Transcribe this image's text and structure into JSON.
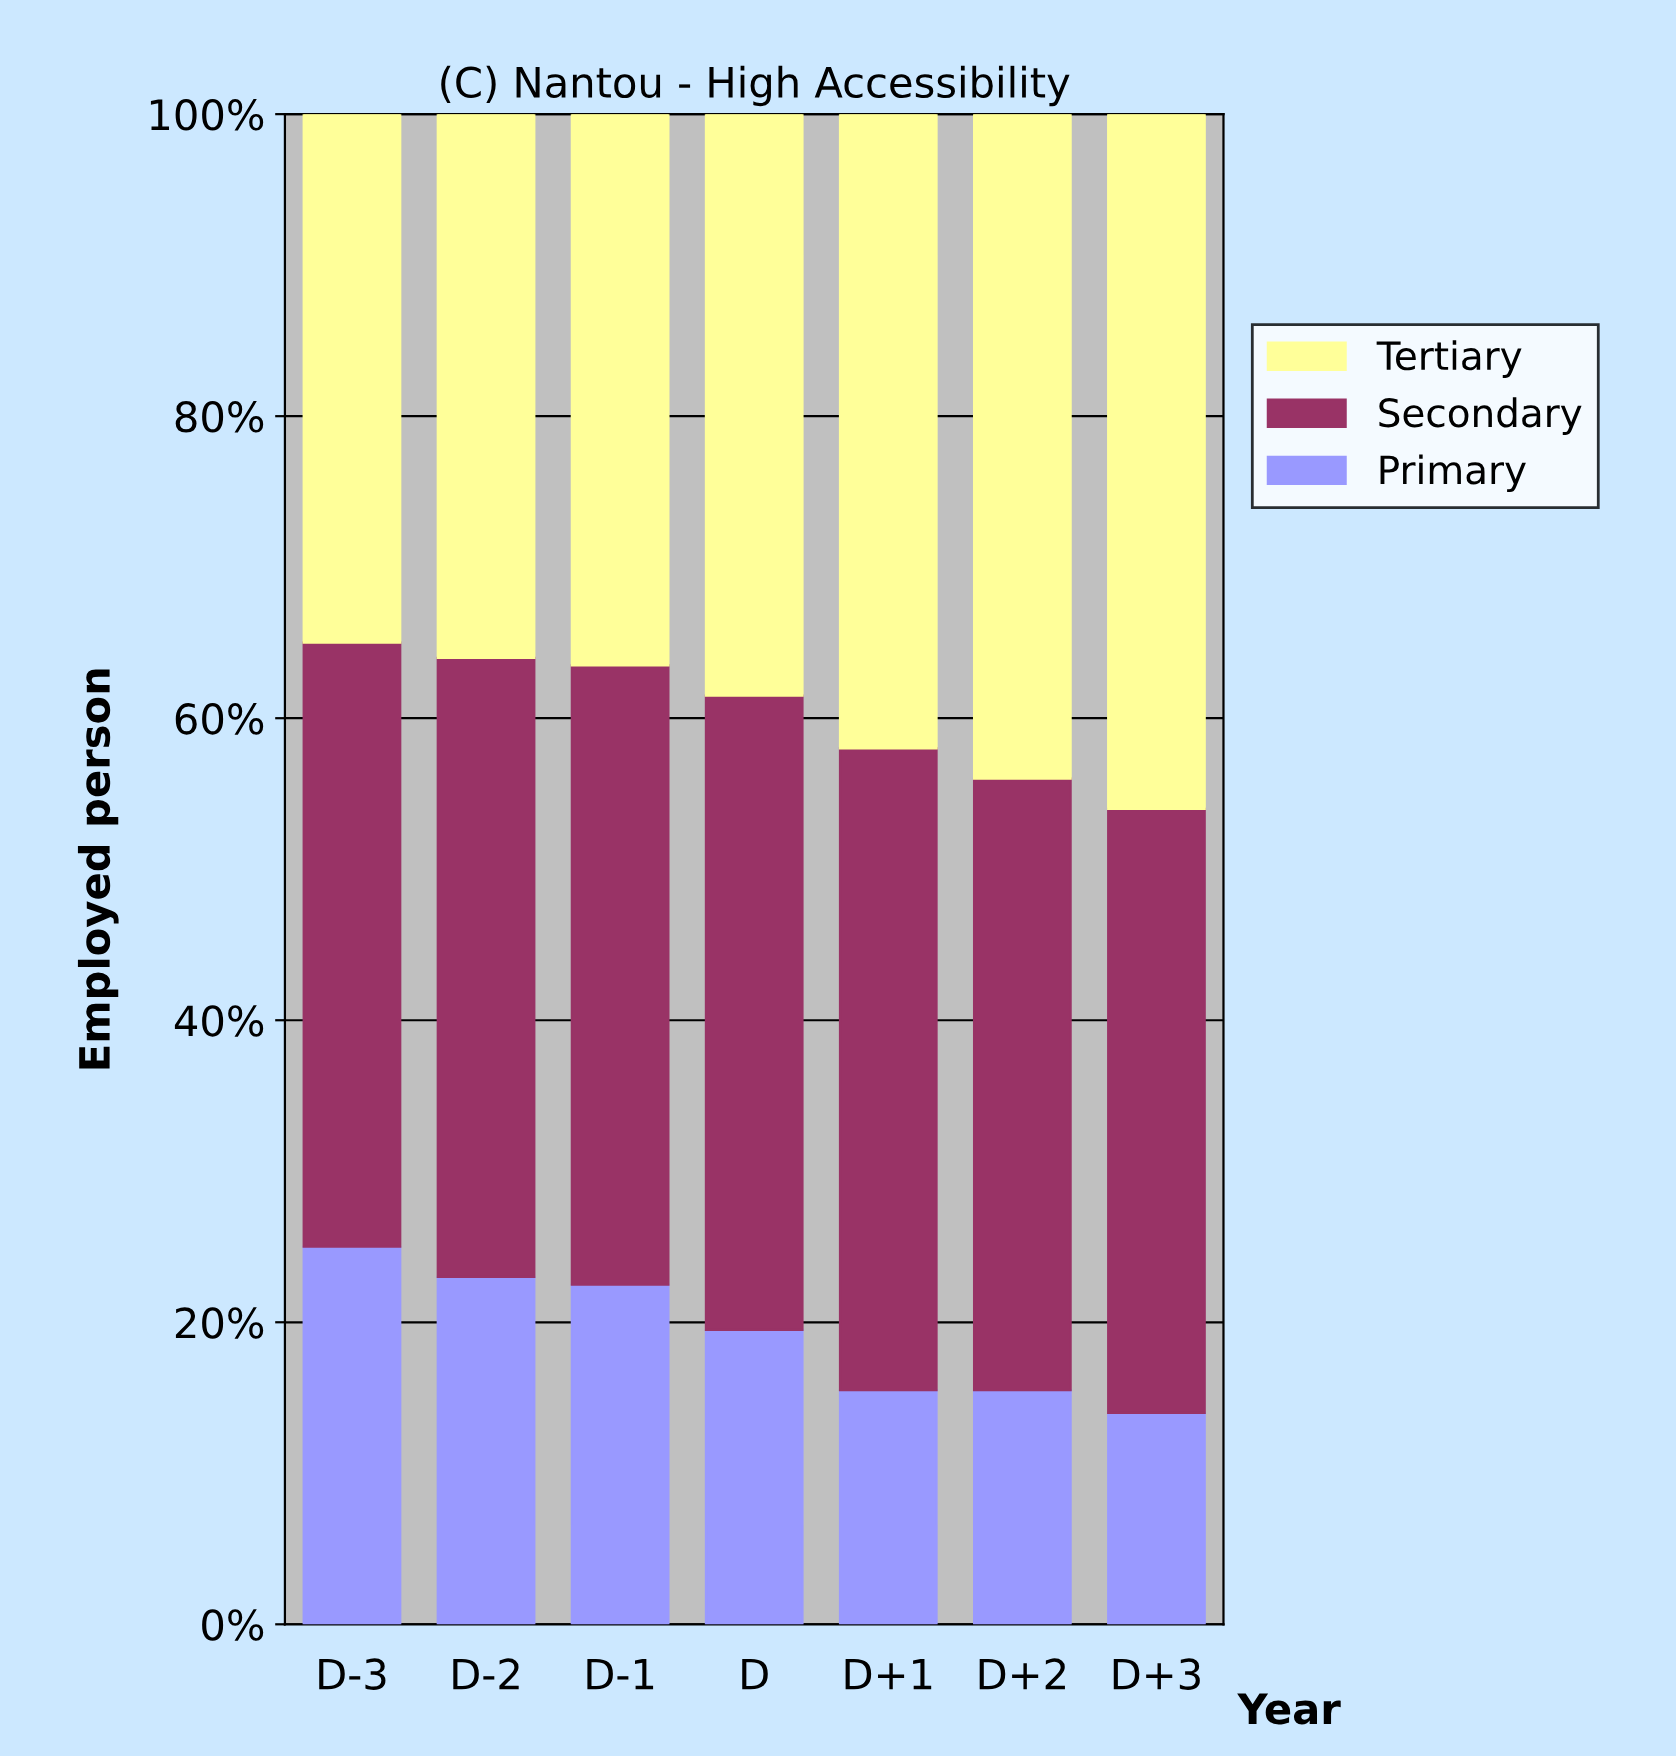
{
  "chart_data": {
    "type": "bar",
    "stacked": true,
    "title": "(C) Nantou - High Accessibility",
    "xlabel": "Year",
    "ylabel": "Employed person",
    "categories": [
      "D-3",
      "D-2",
      "D-1",
      "D",
      "D+1",
      "D+2",
      "D+3"
    ],
    "series": [
      {
        "name": "Primary",
        "color": "#9999ff",
        "values": [
          25,
          23,
          22.5,
          19.5,
          15.5,
          15.5,
          14
        ]
      },
      {
        "name": "Secondary",
        "color": "#993366",
        "values": [
          40,
          41,
          41,
          42,
          42.5,
          40.5,
          40
        ]
      },
      {
        "name": "Tertiary",
        "color": "#ffff99",
        "values": [
          35,
          36,
          36.5,
          38.5,
          42,
          44,
          46
        ]
      }
    ],
    "ylim": [
      0,
      100
    ],
    "yticks": [
      {
        "value": 0,
        "label": "0%"
      },
      {
        "value": 20,
        "label": "20%"
      },
      {
        "value": 40,
        "label": "40%"
      },
      {
        "value": 60,
        "label": "60%"
      },
      {
        "value": 80,
        "label": "80%"
      },
      {
        "value": 100,
        "label": "100%"
      }
    ],
    "grid": "y",
    "legend": "right"
  }
}
